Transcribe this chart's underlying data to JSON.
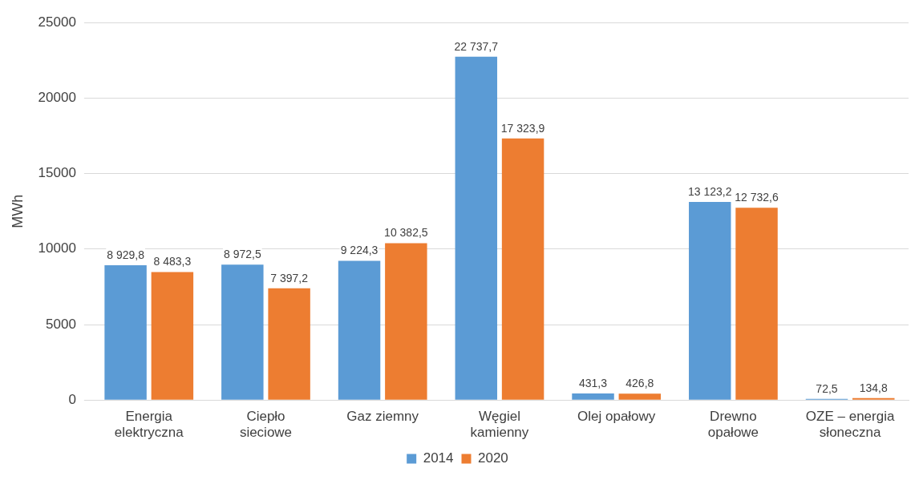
{
  "chart_data": {
    "type": "bar",
    "ylabel": "MWh",
    "categories": [
      "Energia elektryczna",
      "Ciepło sieciowe",
      "Gaz ziemny",
      "Węgiel kamienny",
      "Olej opałowy",
      "Drewno opałowe",
      "OZE – energia słoneczna"
    ],
    "series": [
      {
        "name": "2014",
        "color": "#5b9bd5",
        "values": [
          8929.8,
          8972.5,
          9224.3,
          22737.7,
          431.3,
          13123.2,
          72.5
        ],
        "value_labels": [
          "8 929,8",
          "8 972,5",
          "9 224,3",
          "22 737,7",
          "431,3",
          "13 123,2",
          "72,5"
        ]
      },
      {
        "name": "2020",
        "color": "#ed7d31",
        "values": [
          8483.3,
          7397.2,
          10382.5,
          17323.9,
          426.8,
          12732.6,
          134.8
        ],
        "value_labels": [
          "8 483,3",
          "7 397,2",
          "10 382,5",
          "17 323,9",
          "426,8",
          "12 732,6",
          "134,8"
        ]
      }
    ],
    "ylim": [
      0,
      25000
    ],
    "yticks": [
      0,
      5000,
      10000,
      15000,
      20000,
      25000
    ],
    "grid": "y",
    "legend": "bottom"
  }
}
